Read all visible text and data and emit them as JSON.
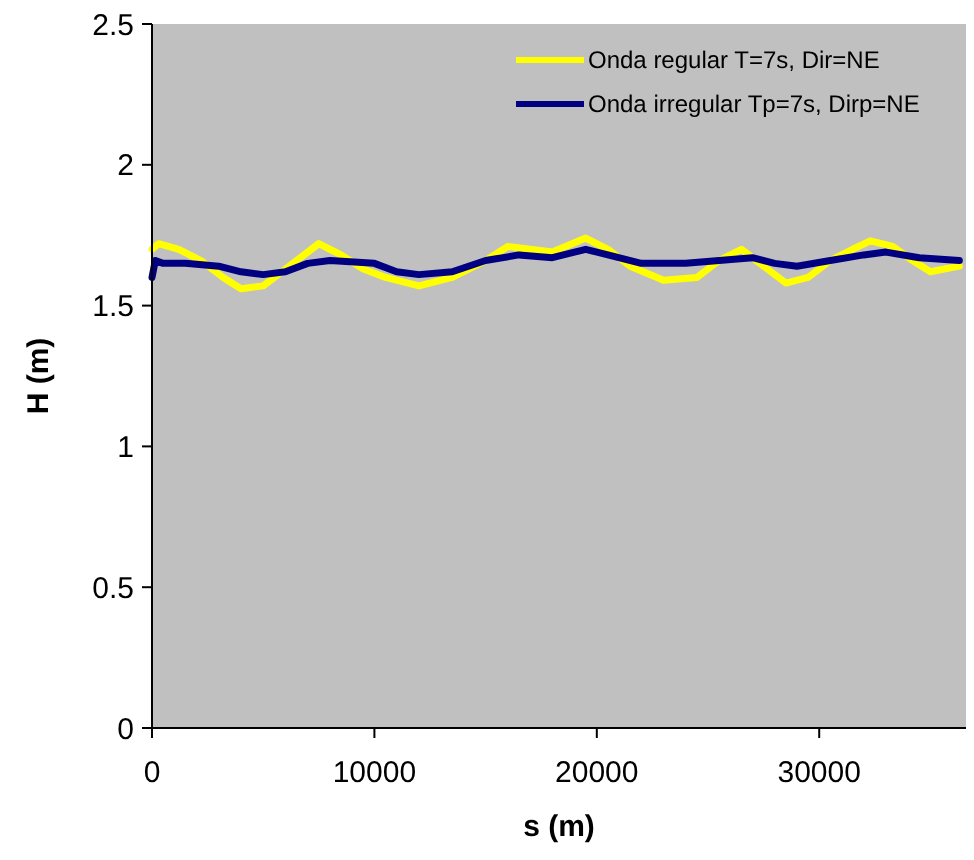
{
  "chart_data": {
    "type": "line",
    "xlabel": "s (m)",
    "ylabel": "H (m)",
    "xlim": [
      0,
      36600
    ],
    "xticks": [
      0,
      10000,
      20000,
      30000
    ],
    "ylim": [
      0,
      2.5
    ],
    "yticks": [
      0,
      0.5,
      1,
      1.5,
      2,
      2.5
    ],
    "grid": false,
    "legend": "top right",
    "marker": "none",
    "line_style": "solid",
    "series": [
      {
        "name": "Onda regular T=7s, Dir=NE",
        "color": "#ffff00",
        "x": [
          0,
          300,
          1200,
          2200,
          3200,
          4000,
          5000,
          6000,
          7000,
          7500,
          8500,
          9500,
          10500,
          12000,
          13500,
          15000,
          16000,
          17000,
          18000,
          19500,
          20500,
          21500,
          23000,
          24500,
          25500,
          26500,
          27500,
          28500,
          29500,
          30500,
          31500,
          32300,
          33300,
          34200,
          35000,
          36300
        ],
        "values": [
          1.7,
          1.72,
          1.7,
          1.66,
          1.6,
          1.56,
          1.57,
          1.63,
          1.69,
          1.72,
          1.68,
          1.63,
          1.6,
          1.57,
          1.6,
          1.66,
          1.71,
          1.7,
          1.69,
          1.74,
          1.7,
          1.64,
          1.59,
          1.6,
          1.66,
          1.7,
          1.64,
          1.58,
          1.6,
          1.66,
          1.7,
          1.73,
          1.71,
          1.66,
          1.62,
          1.64
        ]
      },
      {
        "name": "Onda irregular Tp=7s, Dirp=NE",
        "color": "#000080",
        "x": [
          0,
          150,
          500,
          1500,
          3000,
          4000,
          5000,
          6000,
          7000,
          8000,
          10000,
          11000,
          12000,
          13500,
          15000,
          16500,
          18000,
          19500,
          20500,
          22000,
          24000,
          25500,
          27000,
          28000,
          29000,
          30500,
          32000,
          33000,
          34500,
          36300
        ],
        "values": [
          1.6,
          1.66,
          1.65,
          1.65,
          1.64,
          1.62,
          1.61,
          1.62,
          1.65,
          1.66,
          1.65,
          1.62,
          1.61,
          1.62,
          1.66,
          1.68,
          1.67,
          1.7,
          1.68,
          1.65,
          1.65,
          1.66,
          1.67,
          1.65,
          1.64,
          1.66,
          1.68,
          1.69,
          1.67,
          1.66
        ]
      }
    ]
  }
}
